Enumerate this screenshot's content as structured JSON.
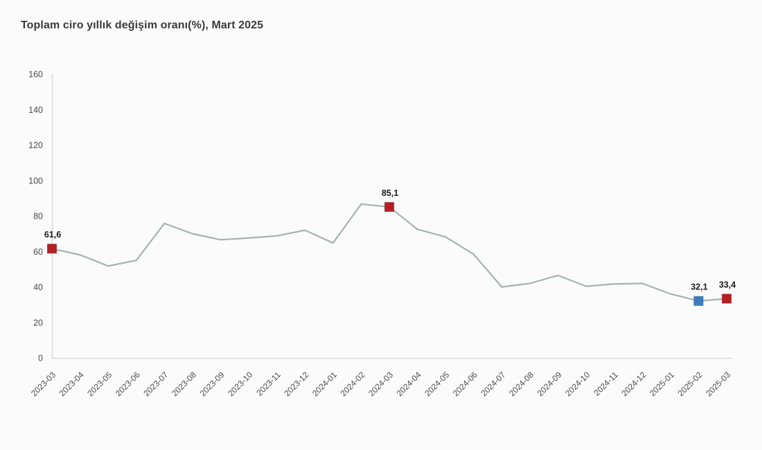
{
  "chart_data": {
    "type": "line",
    "title": "Toplam ciro yıllık değişim oranı(%), Mart 2025",
    "xlabel": "",
    "ylabel": "",
    "ylim": [
      0,
      160
    ],
    "yticks": [
      0,
      20,
      40,
      60,
      80,
      100,
      120,
      140,
      160
    ],
    "grid": false,
    "legend": false,
    "categories": [
      "2023-03",
      "2023-04",
      "2023-05",
      "2023-06",
      "2023-07",
      "2023-08",
      "2023-09",
      "2023-10",
      "2023-11",
      "2023-12",
      "2024-01",
      "2024-02",
      "2024-03",
      "2024-04",
      "2024-05",
      "2024-06",
      "2024-07",
      "2024-08",
      "2024-09",
      "2024-10",
      "2024-11",
      "2024-12",
      "2025-01",
      "2025-02",
      "2025-03"
    ],
    "values": [
      61.6,
      58.1,
      51.8,
      55.0,
      75.8,
      70.0,
      66.6,
      67.6,
      68.8,
      72.0,
      64.8,
      86.7,
      85.1,
      72.5,
      68.2,
      58.4,
      40.0,
      42.0,
      46.5,
      40.4,
      41.7,
      42.0,
      36.1,
      32.1,
      33.4
    ],
    "highlights": [
      {
        "index": 0,
        "label": "61,6",
        "color": "#b41f24"
      },
      {
        "index": 12,
        "label": "85,1",
        "color": "#b41f24"
      },
      {
        "index": 23,
        "label": "32,1",
        "color": "#3d7dbf"
      },
      {
        "index": 24,
        "label": "33,4",
        "color": "#b41f24"
      }
    ],
    "colors": {
      "line": "#a5b2b0",
      "axis": "#d9d9d9",
      "tick_label": "#4b4b4b",
      "data_label": "#1c1c1c",
      "marker_red": "#b41f24",
      "marker_blue": "#3d7dbf"
    }
  }
}
